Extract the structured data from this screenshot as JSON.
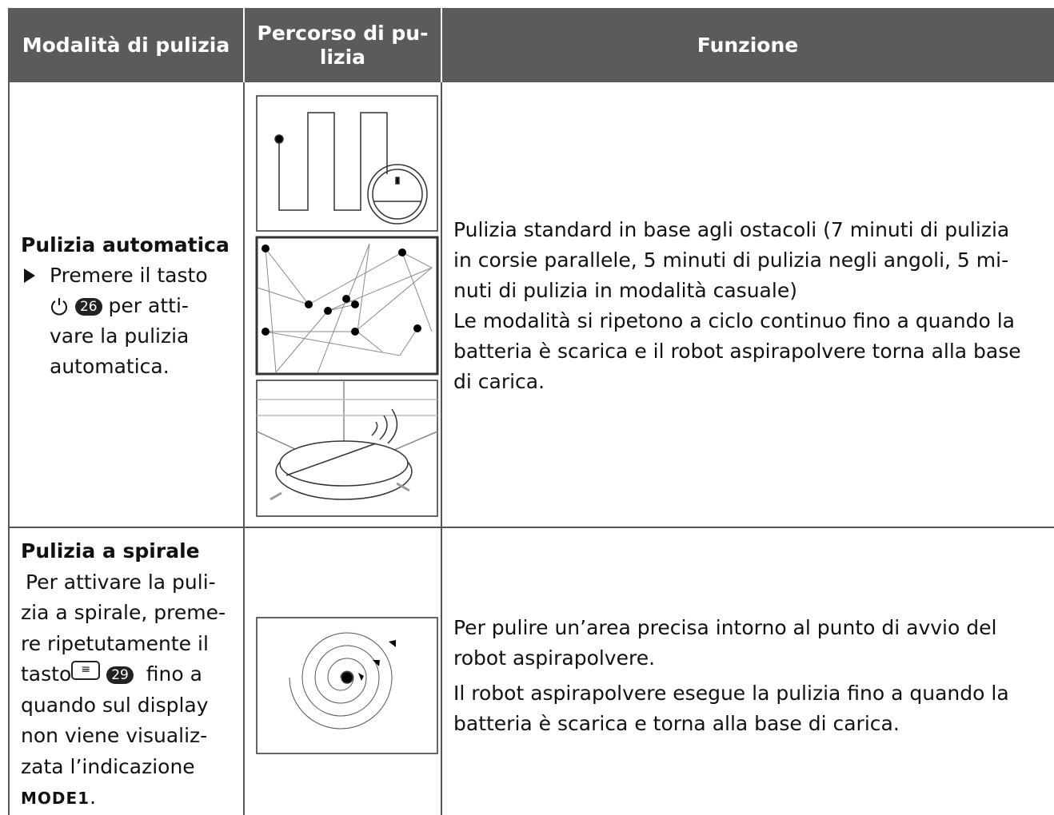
{
  "header": {
    "cells": [
      "Modalità di pulizia",
      [
        "Percorso di pu-",
        "lizia"
      ],
      "Funzione"
    ]
  },
  "rows": [
    {
      "mode": {
        "title": "Pulizia automatica",
        "line1": "Premere il tasto",
        "button": "26",
        "line2": "per atti-",
        "lines": [
          "vare la pulizia",
          "automatica."
        ]
      },
      "function": [
        "Pulizia standard in base agli ostacoli (7 minuti di pulizia",
        "in corsie parallele, 5 minuti di pulizia negli angoli, 5 mi-",
        "nuti di pulizia in modalità casuale)",
        "Le modalità si ripetono a ciclo continuo fino a quando la",
        "batteria è scarica e il robot aspirapolvere torna alla base",
        "di carica."
      ]
    },
    {
      "mode": {
        "title": "Pulizia a spirale",
        "lines": [
          "Per attivare la puli-",
          "zia a spirale, preme-",
          "re ripetutamente il"
        ],
        "line1": "tasto",
        "button": "29",
        "line2": "fino a",
        "lines2": [
          "quando sul display",
          "non viene visualiz-",
          "zata l’indicazione"
        ],
        "code": "MODE1",
        "end": "."
      },
      "function": [
        "Per pulire un’area precisa intorno al punto di avvio del",
        "robot aspirapolvere.",
        "Il robot aspirapolvere esegue la pulizia fino a quando la",
        "batteria è scarica e torna alla base di carica."
      ]
    }
  ]
}
